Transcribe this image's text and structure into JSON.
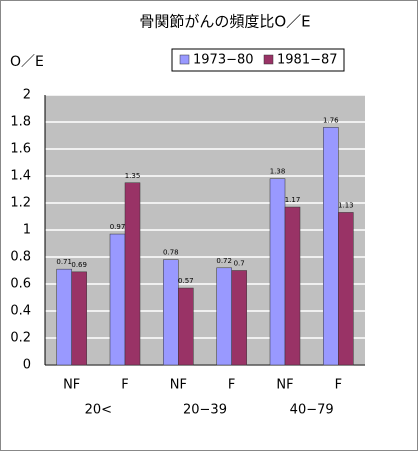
{
  "chart_data": {
    "type": "bar",
    "title": "骨関節がんの頻度比O／E",
    "y_label": "O／E",
    "categories": [
      "NF",
      "F",
      "NF",
      "F",
      "NF",
      "F"
    ],
    "groups": [
      "20<",
      "20−39",
      "40−79"
    ],
    "series": [
      {
        "name": "1973−80",
        "color": "#9999ff",
        "values": [
          0.71,
          0.97,
          0.78,
          0.72,
          1.38,
          1.76
        ]
      },
      {
        "name": "1981−87",
        "color": "#993366",
        "values": [
          0.69,
          1.35,
          0.57,
          0.7,
          1.17,
          1.13
        ]
      }
    ],
    "ylim": [
      0,
      2
    ],
    "yticks": [
      0,
      0.2,
      0.4,
      0.6,
      0.8,
      1,
      1.2,
      1.4,
      1.6,
      1.8,
      2
    ],
    "grid": true,
    "legend": "top"
  }
}
